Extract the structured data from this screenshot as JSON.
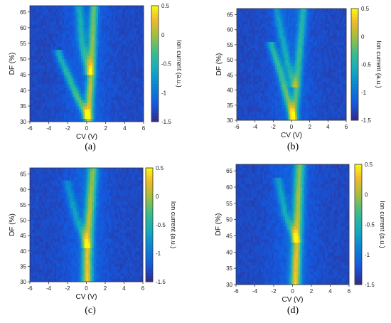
{
  "chart_data": [
    {
      "type": "heatmap",
      "panel_label": "(a)",
      "xlabel": "CV (V)",
      "ylabel": "DF (%)",
      "xlim": [
        -6,
        6
      ],
      "ylim": [
        30,
        67
      ],
      "xticks": [
        "-6",
        "-4",
        "-2",
        "0",
        "2",
        "4",
        "6"
      ],
      "yticks": [
        "30",
        "35",
        "40",
        "45",
        "50",
        "55",
        "60",
        "65"
      ],
      "colorbar": {
        "label": "Ion current (a.u.)",
        "ticks": [
          "0.5",
          "0",
          "-0.5",
          "-1",
          "-1.5"
        ],
        "range": [
          -1.5,
          0.5
        ]
      },
      "ridges": [
        {
          "points": [
            [
              0.2,
              30
            ],
            [
              0.3,
              38
            ],
            [
              0.5,
              46
            ],
            [
              0.6,
              54
            ],
            [
              0.7,
              62
            ],
            [
              0.8,
              67
            ]
          ],
          "intensity": 0.7
        },
        {
          "points": [
            [
              0.0,
              32
            ],
            [
              -1.0,
              38
            ],
            [
              -2.0,
              45
            ],
            [
              -3.0,
              52
            ]
          ],
          "intensity": 0.5
        },
        {
          "points": [
            [
              0.2,
              46
            ],
            [
              -0.5,
              55
            ],
            [
              -0.8,
              67
            ]
          ],
          "intensity": 0.4
        }
      ]
    },
    {
      "type": "heatmap",
      "panel_label": "(b)",
      "xlabel": "CV (V)",
      "ylabel": "DF (%)",
      "xlim": [
        -6,
        6
      ],
      "ylim": [
        30,
        67
      ],
      "xticks": [
        "-6",
        "-4",
        "-2",
        "0",
        "2",
        "4",
        "6"
      ],
      "yticks": [
        "30",
        "35",
        "40",
        "45",
        "50",
        "55",
        "60",
        "65"
      ],
      "colorbar": {
        "label": "Ion current (a.u.)",
        "ticks": [
          "0.5",
          "0",
          "-0.5",
          "-1",
          "-1.5"
        ],
        "range": [
          -1.5,
          0.5
        ]
      },
      "ridges": [
        {
          "points": [
            [
              0.2,
              30
            ],
            [
              -0.5,
              38
            ],
            [
              -1.2,
              46
            ],
            [
              -2.2,
              55
            ]
          ],
          "intensity": 0.55
        },
        {
          "points": [
            [
              0.2,
              30
            ],
            [
              0.5,
              38
            ],
            [
              0.7,
              46
            ],
            [
              1.0,
              56
            ],
            [
              1.3,
              67
            ]
          ],
          "intensity": 0.5
        },
        {
          "points": [
            [
              0.2,
              42
            ],
            [
              -0.5,
              50
            ],
            [
              -1.2,
              60
            ],
            [
              -1.6,
              67
            ]
          ],
          "intensity": 0.35
        }
      ]
    },
    {
      "type": "heatmap",
      "panel_label": "(c)",
      "xlabel": "CV (V)",
      "ylabel": "DF (%)",
      "xlim": [
        -6,
        6
      ],
      "ylim": [
        30,
        67
      ],
      "xticks": [
        "-6",
        "-4",
        "-2",
        "0",
        "2",
        "4",
        "6"
      ],
      "yticks": [
        "30",
        "35",
        "40",
        "45",
        "50",
        "55",
        "60",
        "65"
      ],
      "colorbar": {
        "label": "Ion current (a.u.)",
        "ticks": [
          "0.5",
          "0",
          "-0.5",
          "-1",
          "-1.5"
        ],
        "range": [
          -1.5,
          0.5
        ]
      },
      "ridges": [
        {
          "points": [
            [
              0.1,
              30
            ],
            [
              0.1,
              38
            ],
            [
              0.2,
              46
            ],
            [
              0.4,
              54
            ],
            [
              0.6,
              62
            ],
            [
              0.7,
              67
            ]
          ],
          "intensity": 0.75,
          "width": 0.55
        },
        {
          "points": [
            [
              0.0,
              42
            ],
            [
              -1.2,
              52
            ],
            [
              -2.0,
              62
            ]
          ],
          "intensity": 0.3
        }
      ]
    },
    {
      "type": "heatmap",
      "panel_label": "(d)",
      "xlabel": "CV (V)",
      "ylabel": "DF (%)",
      "xlim": [
        -6,
        6
      ],
      "ylim": [
        30,
        67
      ],
      "xticks": [
        "-6",
        "-4",
        "-2",
        "0",
        "2",
        "4",
        "6"
      ],
      "yticks": [
        "30",
        "35",
        "40",
        "45",
        "50",
        "55",
        "60",
        "65"
      ],
      "colorbar": {
        "label": "Ion current (a.u.)",
        "ticks": [
          "0.5",
          "0",
          "-0.5",
          "-1",
          "-1.5"
        ],
        "range": [
          -1.5,
          0.5
        ]
      },
      "ridges": [
        {
          "points": [
            [
              0.3,
              30
            ],
            [
              0.4,
              38
            ],
            [
              0.5,
              46
            ],
            [
              0.6,
              54
            ],
            [
              0.7,
              62
            ],
            [
              0.8,
              67
            ]
          ],
          "intensity": 0.75,
          "width": 0.55
        },
        {
          "points": [
            [
              0.3,
              44
            ],
            [
              -0.8,
              52
            ],
            [
              -1.5,
              62
            ]
          ],
          "intensity": 0.35
        }
      ]
    }
  ]
}
